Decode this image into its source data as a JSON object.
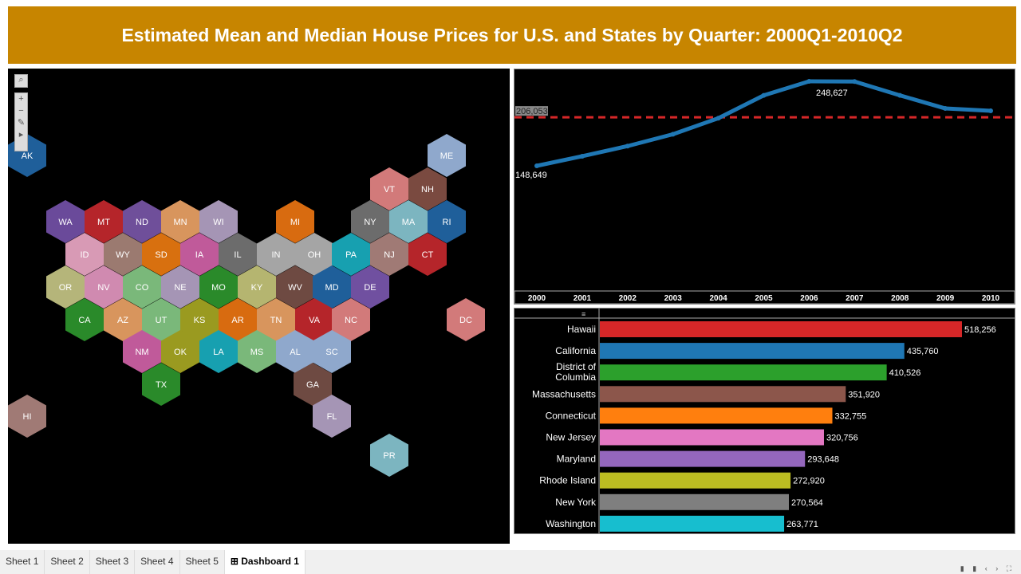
{
  "title": "Estimated Mean and Median House Prices for U.S. and States by Quarter: 2000Q1-2010Q2",
  "map": {
    "toolbar": [
      "search-icon",
      "zoom-in-icon",
      "zoom-out-icon",
      "pin-icon",
      "expand-arrow-icon"
    ],
    "states": [
      {
        "abbr": "AK",
        "color": "#1f5f9a"
      },
      {
        "abbr": "ME",
        "color": "#8fa8cc"
      },
      {
        "abbr": "VT",
        "color": "#d27a7a"
      },
      {
        "abbr": "NH",
        "color": "#7a4a40"
      },
      {
        "abbr": "WA",
        "color": "#6a4a9a"
      },
      {
        "abbr": "MT",
        "color": "#b5252a"
      },
      {
        "abbr": "ND",
        "color": "#6f4f9a"
      },
      {
        "abbr": "MN",
        "color": "#d8955d"
      },
      {
        "abbr": "WI",
        "color": "#a595b5"
      },
      {
        "abbr": "MI",
        "color": "#d86b10"
      },
      {
        "abbr": "NY",
        "color": "#6c6c6c"
      },
      {
        "abbr": "MA",
        "color": "#7cb5c0"
      },
      {
        "abbr": "RI",
        "color": "#1f5f9a"
      },
      {
        "abbr": "ID",
        "color": "#d89ab5"
      },
      {
        "abbr": "WY",
        "color": "#9b7a70"
      },
      {
        "abbr": "SD",
        "color": "#d8700f"
      },
      {
        "abbr": "IA",
        "color": "#c05a9a"
      },
      {
        "abbr": "IL",
        "color": "#6c6c6c"
      },
      {
        "abbr": "IN",
        "color": "#a5a5a5"
      },
      {
        "abbr": "OH",
        "color": "#a5a5a5"
      },
      {
        "abbr": "PA",
        "color": "#17a0b0"
      },
      {
        "abbr": "NJ",
        "color": "#a07a75"
      },
      {
        "abbr": "CT",
        "color": "#b5252a"
      },
      {
        "abbr": "OR",
        "color": "#b5b57a"
      },
      {
        "abbr": "NV",
        "color": "#d08ab0"
      },
      {
        "abbr": "CO",
        "color": "#7ab87a"
      },
      {
        "abbr": "NE",
        "color": "#a595b5"
      },
      {
        "abbr": "MO",
        "color": "#2a8a2a"
      },
      {
        "abbr": "KY",
        "color": "#b5b570"
      },
      {
        "abbr": "WV",
        "color": "#6e4a42"
      },
      {
        "abbr": "MD",
        "color": "#1f5f9a"
      },
      {
        "abbr": "DE",
        "color": "#7050a0"
      },
      {
        "abbr": "CA",
        "color": "#2a8a2a"
      },
      {
        "abbr": "AZ",
        "color": "#d8955d"
      },
      {
        "abbr": "UT",
        "color": "#7ab87a"
      },
      {
        "abbr": "KS",
        "color": "#9a9a20"
      },
      {
        "abbr": "AR",
        "color": "#d86b10"
      },
      {
        "abbr": "TN",
        "color": "#d8955d"
      },
      {
        "abbr": "VA",
        "color": "#b5252a"
      },
      {
        "abbr": "NC",
        "color": "#d27a7a"
      },
      {
        "abbr": "DC",
        "color": "#d27a7a"
      },
      {
        "abbr": "NM",
        "color": "#c05a9a"
      },
      {
        "abbr": "OK",
        "color": "#9a9a20"
      },
      {
        "abbr": "LA",
        "color": "#17a0b0"
      },
      {
        "abbr": "MS",
        "color": "#7ab87a"
      },
      {
        "abbr": "AL",
        "color": "#8fa8cc"
      },
      {
        "abbr": "SC",
        "color": "#8fa8cc"
      },
      {
        "abbr": "TX",
        "color": "#2a8a2a"
      },
      {
        "abbr": "GA",
        "color": "#6e4a42"
      },
      {
        "abbr": "HI",
        "color": "#a07a75"
      },
      {
        "abbr": "FL",
        "color": "#a595b5"
      },
      {
        "abbr": "PR",
        "color": "#7cb5c0"
      }
    ]
  },
  "chart_data": [
    {
      "type": "line",
      "categories": [
        "2000",
        "2001",
        "2002",
        "2003",
        "2004",
        "2005",
        "2006",
        "2007",
        "2008",
        "2009",
        "2010"
      ],
      "values": [
        148649,
        160000,
        172000,
        186000,
        205000,
        232000,
        248627,
        248400,
        232000,
        216500,
        213700
      ],
      "labels": {
        "first": "148,649",
        "max": "248,627"
      },
      "reference_line": {
        "value": 206053,
        "label": "206,053",
        "color": "#d62728"
      },
      "line_color": "#1f77b4",
      "ylim": [
        90000,
        260000
      ]
    },
    {
      "type": "bar",
      "orientation": "horizontal",
      "categories": [
        "Hawaii",
        "California",
        "District of Columbia",
        "Massachusetts",
        "Connecticut",
        "New Jersey",
        "Maryland",
        "Rhode Island",
        "New York",
        "Washington"
      ],
      "values": [
        518256,
        435760,
        410526,
        351920,
        332755,
        320756,
        293648,
        272920,
        270564,
        263771
      ],
      "value_labels": [
        "518,256",
        "435,760",
        "410,526",
        "351,920",
        "332,755",
        "320,756",
        "293,648",
        "272,920",
        "270,564",
        "263,771"
      ],
      "colors": [
        "#d62728",
        "#1f77b4",
        "#2ca02c",
        "#8c564b",
        "#ff7f0e",
        "#e377c2",
        "#9467bd",
        "#bcbd22",
        "#7f7f7f",
        "#17becf"
      ]
    }
  ],
  "tabs": [
    {
      "label": "Sheet 1"
    },
    {
      "label": "Sheet 2"
    },
    {
      "label": "Sheet 3"
    },
    {
      "label": "Sheet 4"
    },
    {
      "label": "Sheet 5"
    },
    {
      "label": "Dashboard 1",
      "active": true
    }
  ],
  "controls": "▮ ▮ ‹ › ⛶"
}
